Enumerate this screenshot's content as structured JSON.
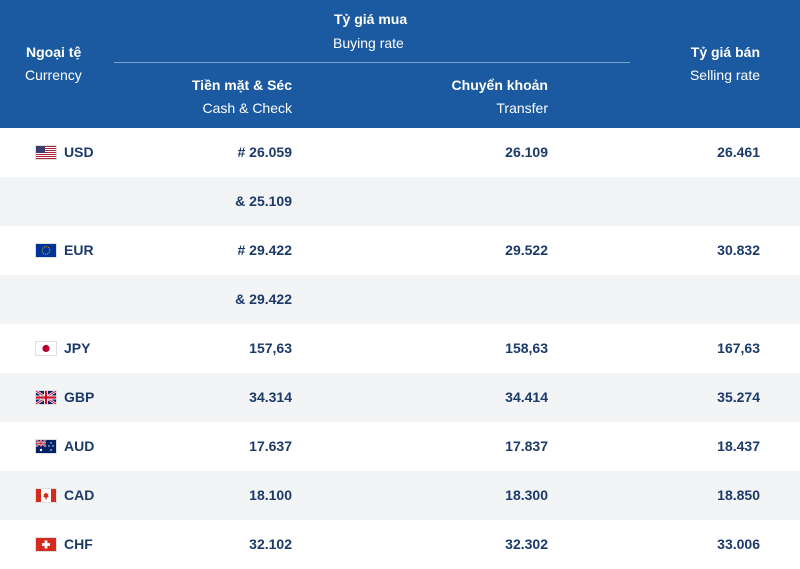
{
  "header": {
    "currency_vi": "Ngoại tệ",
    "currency_en": "Currency",
    "buying_vi": "Tỷ giá mua",
    "buying_en": "Buying rate",
    "cash_vi": "Tiền mặt & Séc",
    "cash_en": "Cash & Check",
    "transfer_vi": "Chuyển khoản",
    "transfer_en": "Transfer",
    "selling_vi": "Tỷ giá bán",
    "selling_en": "Selling rate"
  },
  "rows": [
    {
      "flag": "us-flag-icon",
      "code": "USD",
      "cash": "# 26.059",
      "transfer": "26.109",
      "sell": "26.461"
    },
    {
      "flag": "",
      "code": "",
      "cash": "& 25.109",
      "transfer": "",
      "sell": ""
    },
    {
      "flag": "eu-flag-icon",
      "code": "EUR",
      "cash": "# 29.422",
      "transfer": "29.522",
      "sell": "30.832"
    },
    {
      "flag": "",
      "code": "",
      "cash": "& 29.422",
      "transfer": "",
      "sell": ""
    },
    {
      "flag": "jp-flag-icon",
      "code": "JPY",
      "cash": "157,63",
      "transfer": "158,63",
      "sell": "167,63"
    },
    {
      "flag": "gb-flag-icon",
      "code": "GBP",
      "cash": "34.314",
      "transfer": "34.414",
      "sell": "35.274"
    },
    {
      "flag": "au-flag-icon",
      "code": "AUD",
      "cash": "17.637",
      "transfer": "17.837",
      "sell": "18.437"
    },
    {
      "flag": "ca-flag-icon",
      "code": "CAD",
      "cash": "18.100",
      "transfer": "18.300",
      "sell": "18.850"
    },
    {
      "flag": "ch-flag-icon",
      "code": "CHF",
      "cash": "32.102",
      "transfer": "32.302",
      "sell": "33.006"
    }
  ],
  "colors": {
    "header_bg": "#1b5aa0",
    "text": "#1b3a6a",
    "alt_row": "#f3f4f6"
  }
}
